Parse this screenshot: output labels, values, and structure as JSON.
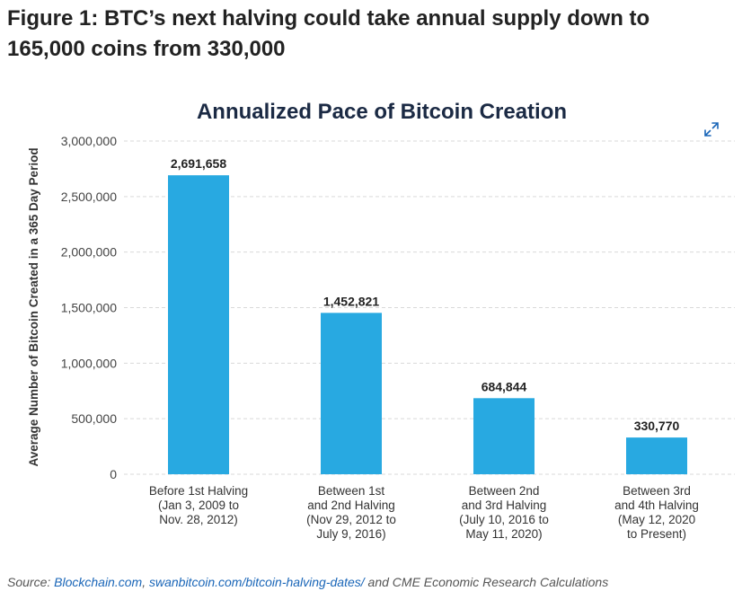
{
  "figure_title": "Figure 1: BTC’s next halving could take annual supply down to 165,000 coins from 330,000",
  "source": {
    "prefix": "Source: ",
    "link1": "Blockchain.com",
    "sep": ", ",
    "link2": "swanbitcoin.com/bitcoin-halving-dates/",
    "suffix": " and CME Economic Research Calculations"
  },
  "colors": {
    "bar": "#28a9e1",
    "title": "#1b2a44",
    "grid": "#d9d9d9",
    "link": "#1a66b8"
  },
  "icons": {
    "expand": "expand-arrows-icon"
  },
  "chart_data": {
    "type": "bar",
    "title": "Annualized Pace of Bitcoin Creation",
    "ylabel": "Average Number of Bitcoin Created in a 365 Day Period",
    "xlabel": "",
    "ylim": [
      0,
      3000000
    ],
    "yticks": [
      0,
      500000,
      1000000,
      1500000,
      2000000,
      2500000,
      3000000
    ],
    "ytick_labels": [
      "0",
      "500,000",
      "1,000,000",
      "1,500,000",
      "2,000,000",
      "2,500,000",
      "3,000,000"
    ],
    "grid": true,
    "categories": [
      [
        "Before 1st Halving",
        "(Jan 3, 2009 to",
        "Nov. 28, 2012)"
      ],
      [
        "Between 1st",
        "and 2nd Halving",
        "(Nov 29, 2012 to",
        "July 9, 2016)"
      ],
      [
        "Between 2nd",
        "and 3rd Halving",
        "(July 10, 2016 to",
        "May 11, 2020)"
      ],
      [
        "Between 3rd",
        "and 4th Halving",
        "(May 12, 2020",
        "to Present)"
      ]
    ],
    "values": [
      2691658,
      1452821,
      684844,
      330770
    ],
    "data_labels": [
      "2,691,658",
      "1,452,821",
      "684,844",
      "330,770"
    ]
  }
}
